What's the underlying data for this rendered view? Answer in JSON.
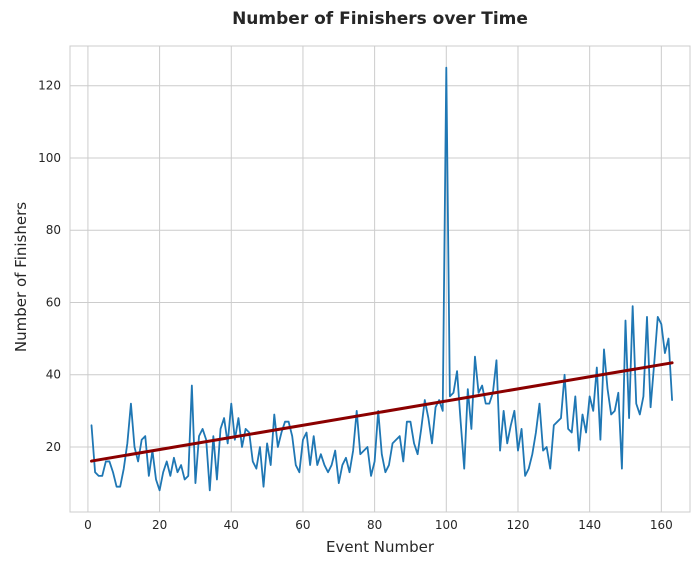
{
  "chart_data": {
    "type": "line",
    "title": "Number of Finishers over Time",
    "xlabel": "Event Number",
    "ylabel": "Number of Finishers",
    "xlim": [
      -5,
      168
    ],
    "ylim": [
      2,
      131
    ],
    "xticks": [
      0,
      20,
      40,
      60,
      80,
      100,
      120,
      140,
      160
    ],
    "yticks": [
      20,
      40,
      60,
      80,
      100,
      120
    ],
    "grid": true,
    "legend": "none",
    "series": [
      {
        "color": "#1f77b4",
        "x": [
          1,
          2,
          3,
          4,
          5,
          6,
          7,
          8,
          9,
          10,
          11,
          12,
          13,
          14,
          15,
          16,
          17,
          18,
          19,
          20,
          21,
          22,
          23,
          24,
          25,
          26,
          27,
          28,
          29,
          30,
          31,
          32,
          33,
          34,
          35,
          36,
          37,
          38,
          39,
          40,
          41,
          42,
          43,
          44,
          45,
          46,
          47,
          48,
          49,
          50,
          51,
          52,
          53,
          54,
          55,
          56,
          57,
          58,
          59,
          60,
          61,
          62,
          63,
          64,
          65,
          66,
          67,
          68,
          69,
          70,
          71,
          72,
          73,
          74,
          75,
          76,
          77,
          78,
          79,
          80,
          81,
          82,
          83,
          84,
          85,
          86,
          87,
          88,
          89,
          90,
          91,
          92,
          93,
          94,
          95,
          96,
          97,
          98,
          99,
          100,
          101,
          102,
          103,
          104,
          105,
          106,
          107,
          108,
          109,
          110,
          111,
          112,
          113,
          114,
          115,
          116,
          117,
          118,
          119,
          120,
          121,
          122,
          123,
          124,
          125,
          126,
          127,
          128,
          129,
          130,
          131,
          132,
          133,
          134,
          135,
          136,
          137,
          138,
          139,
          140,
          141,
          142,
          143,
          144,
          145,
          146,
          147,
          148,
          149,
          150,
          151,
          152,
          153,
          154,
          155,
          156,
          157,
          158,
          159,
          160,
          161,
          162,
          163
        ],
        "y": [
          26,
          13,
          12,
          12,
          16,
          16,
          13,
          9,
          9,
          14,
          21,
          32,
          20,
          16,
          22,
          23,
          12,
          19,
          11,
          8,
          13,
          16,
          12,
          17,
          13,
          15,
          11,
          12,
          37,
          10,
          23,
          25,
          22,
          8,
          23,
          11,
          25,
          28,
          21,
          32,
          22,
          28,
          20,
          25,
          24,
          16,
          14,
          20,
          9,
          21,
          15,
          29,
          20,
          24,
          27,
          27,
          23,
          15,
          13,
          22,
          24,
          15,
          23,
          15,
          18,
          15,
          13,
          15,
          19,
          10,
          15,
          17,
          13,
          19,
          30,
          18,
          19,
          20,
          12,
          16,
          30,
          18,
          13,
          15,
          21,
          22,
          23,
          16,
          27,
          27,
          21,
          18,
          25,
          33,
          28,
          21,
          31,
          33,
          30,
          125,
          34,
          35,
          41,
          27,
          14,
          36,
          25,
          45,
          35,
          37,
          32,
          32,
          35,
          44,
          19,
          30,
          21,
          26,
          30,
          19,
          25,
          12,
          14,
          18,
          24,
          32,
          19,
          20,
          14,
          26,
          27,
          28,
          40,
          25,
          24,
          34,
          19,
          29,
          24,
          34,
          30,
          42,
          22,
          47,
          36,
          29,
          30,
          35,
          14,
          55,
          28,
          59,
          32,
          29,
          34,
          56,
          31,
          43,
          56,
          54,
          46,
          50,
          33
        ]
      },
      {
        "color": "#8b0000",
        "x": [
          1,
          163
        ],
        "y": [
          16.1,
          43.3
        ]
      }
    ]
  }
}
